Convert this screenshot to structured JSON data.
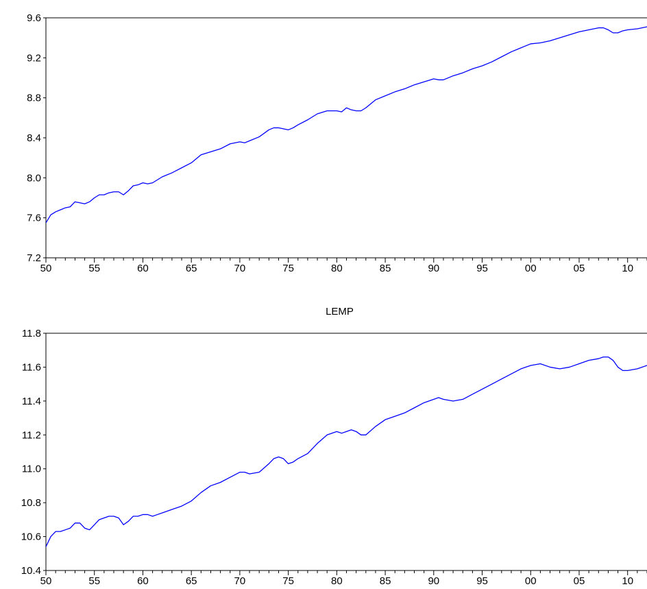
{
  "chart_data": [
    {
      "type": "line",
      "title": "",
      "xlabel": "",
      "ylabel": "",
      "xlim": [
        1950,
        2012
      ],
      "ylim": [
        7.2,
        9.6
      ],
      "yticks": [
        7.2,
        7.6,
        8.0,
        8.4,
        8.8,
        9.2,
        9.6
      ],
      "ytick_labels": [
        "7.2",
        "7.6",
        "8.0",
        "8.4",
        "8.8",
        "9.2",
        "9.6"
      ],
      "xticks": [
        1950,
        1955,
        1960,
        1965,
        1970,
        1975,
        1980,
        1985,
        1990,
        1995,
        2000,
        2005,
        2010
      ],
      "xtick_labels": [
        "50",
        "55",
        "60",
        "65",
        "70",
        "75",
        "80",
        "85",
        "90",
        "95",
        "00",
        "05",
        "10"
      ],
      "grid": false,
      "series": [
        {
          "color": "#0000ff",
          "x": [
            1950.0,
            1950.5,
            1951.0,
            1951.5,
            1952.0,
            1952.5,
            1953.0,
            1953.5,
            1954.0,
            1954.5,
            1955.0,
            1955.5,
            1956.0,
            1956.5,
            1957.0,
            1957.5,
            1958.0,
            1958.5,
            1959.0,
            1959.5,
            1960.0,
            1960.5,
            1961.0,
            1961.5,
            1962.0,
            1963.0,
            1964.0,
            1965.0,
            1966.0,
            1967.0,
            1968.0,
            1969.0,
            1970.0,
            1970.5,
            1971.0,
            1972.0,
            1973.0,
            1973.5,
            1974.0,
            1974.5,
            1975.0,
            1975.5,
            1976.0,
            1977.0,
            1978.0,
            1979.0,
            1980.0,
            1980.5,
            1981.0,
            1981.5,
            1982.0,
            1982.5,
            1983.0,
            1984.0,
            1985.0,
            1986.0,
            1987.0,
            1988.0,
            1989.0,
            1990.0,
            1990.5,
            1991.0,
            1992.0,
            1993.0,
            1994.0,
            1995.0,
            1996.0,
            1997.0,
            1998.0,
            1999.0,
            2000.0,
            2001.0,
            2002.0,
            2003.0,
            2004.0,
            2005.0,
            2006.0,
            2007.0,
            2007.5,
            2008.0,
            2008.5,
            2009.0,
            2009.5,
            2010.0,
            2011.0,
            2012.0
          ],
          "values": [
            7.55,
            7.63,
            7.66,
            7.68,
            7.7,
            7.71,
            7.76,
            7.75,
            7.74,
            7.76,
            7.8,
            7.83,
            7.83,
            7.85,
            7.86,
            7.86,
            7.83,
            7.87,
            7.92,
            7.93,
            7.95,
            7.94,
            7.95,
            7.98,
            8.01,
            8.05,
            8.1,
            8.15,
            8.23,
            8.26,
            8.29,
            8.34,
            8.36,
            8.35,
            8.37,
            8.41,
            8.48,
            8.5,
            8.5,
            8.49,
            8.48,
            8.5,
            8.53,
            8.58,
            8.64,
            8.67,
            8.67,
            8.66,
            8.7,
            8.68,
            8.67,
            8.67,
            8.7,
            8.78,
            8.82,
            8.86,
            8.89,
            8.93,
            8.96,
            8.99,
            8.98,
            8.98,
            9.02,
            9.05,
            9.09,
            9.12,
            9.16,
            9.21,
            9.26,
            9.3,
            9.34,
            9.35,
            9.37,
            9.4,
            9.43,
            9.46,
            9.48,
            9.5,
            9.5,
            9.48,
            9.45,
            9.45,
            9.47,
            9.48,
            9.49,
            9.51
          ]
        }
      ]
    },
    {
      "type": "line",
      "title": "LEMP",
      "xlabel": "",
      "ylabel": "",
      "xlim": [
        1950,
        2012
      ],
      "ylim": [
        10.4,
        11.8
      ],
      "yticks": [
        10.4,
        10.6,
        10.8,
        11.0,
        11.2,
        11.4,
        11.6,
        11.8
      ],
      "ytick_labels": [
        "10.4",
        "10.6",
        "10.8",
        "11.0",
        "11.2",
        "11.4",
        "11.6",
        "11.8"
      ],
      "xticks": [
        1950,
        1955,
        1960,
        1965,
        1970,
        1975,
        1980,
        1985,
        1990,
        1995,
        2000,
        2005,
        2010
      ],
      "xtick_labels": [
        "50",
        "55",
        "60",
        "65",
        "70",
        "75",
        "80",
        "85",
        "90",
        "95",
        "00",
        "05",
        "10"
      ],
      "grid": false,
      "series": [
        {
          "color": "#0000ff",
          "x": [
            1950.0,
            1950.5,
            1951.0,
            1951.5,
            1952.0,
            1952.5,
            1953.0,
            1953.5,
            1954.0,
            1954.5,
            1955.0,
            1955.5,
            1956.0,
            1956.5,
            1957.0,
            1957.5,
            1958.0,
            1958.5,
            1959.0,
            1959.5,
            1960.0,
            1960.5,
            1961.0,
            1961.5,
            1962.0,
            1963.0,
            1964.0,
            1965.0,
            1966.0,
            1967.0,
            1968.0,
            1969.0,
            1970.0,
            1970.5,
            1971.0,
            1972.0,
            1973.0,
            1973.5,
            1974.0,
            1974.5,
            1975.0,
            1975.5,
            1976.0,
            1977.0,
            1978.0,
            1979.0,
            1980.0,
            1980.5,
            1981.0,
            1981.5,
            1982.0,
            1982.5,
            1983.0,
            1984.0,
            1985.0,
            1986.0,
            1987.0,
            1988.0,
            1989.0,
            1990.0,
            1990.5,
            1991.0,
            1992.0,
            1993.0,
            1994.0,
            1995.0,
            1996.0,
            1997.0,
            1998.0,
            1999.0,
            2000.0,
            2001.0,
            2002.0,
            2003.0,
            2004.0,
            2005.0,
            2006.0,
            2007.0,
            2007.5,
            2008.0,
            2008.5,
            2009.0,
            2009.5,
            2010.0,
            2011.0,
            2012.0
          ],
          "values": [
            10.54,
            10.6,
            10.63,
            10.63,
            10.64,
            10.65,
            10.68,
            10.68,
            10.65,
            10.64,
            10.67,
            10.7,
            10.71,
            10.72,
            10.72,
            10.71,
            10.67,
            10.69,
            10.72,
            10.72,
            10.73,
            10.73,
            10.72,
            10.73,
            10.74,
            10.76,
            10.78,
            10.81,
            10.86,
            10.9,
            10.92,
            10.95,
            10.98,
            10.98,
            10.97,
            10.98,
            11.03,
            11.06,
            11.07,
            11.06,
            11.03,
            11.04,
            11.06,
            11.09,
            11.15,
            11.2,
            11.22,
            11.21,
            11.22,
            11.23,
            11.22,
            11.2,
            11.2,
            11.25,
            11.29,
            11.31,
            11.33,
            11.36,
            11.39,
            11.41,
            11.42,
            11.41,
            11.4,
            11.41,
            11.44,
            11.47,
            11.5,
            11.53,
            11.56,
            11.59,
            11.61,
            11.62,
            11.6,
            11.59,
            11.6,
            11.62,
            11.64,
            11.65,
            11.66,
            11.66,
            11.64,
            11.6,
            11.58,
            11.58,
            11.59,
            11.61
          ]
        }
      ]
    }
  ]
}
